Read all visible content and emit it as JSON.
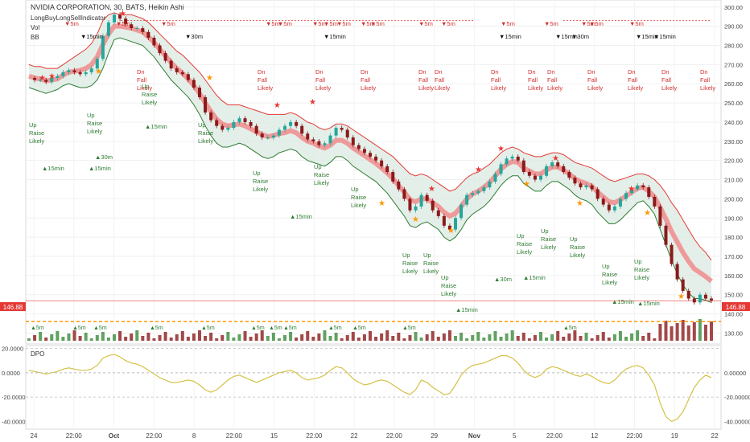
{
  "header": {
    "symbol_line": "NVIDIA CORPORATION, 30, BATS, Heikin Ashi",
    "indicators": [
      "LongBuyLongSellIndicator",
      "Vol",
      "BB"
    ]
  },
  "price_axis": {
    "ticks": [
      "300.00",
      "290.00",
      "280.00",
      "270.00",
      "260.00",
      "250.00",
      "240.00",
      "230.00",
      "220.00",
      "210.00",
      "200.00",
      "190.00",
      "180.00",
      "170.00",
      "160.00",
      "150.00",
      "140.00",
      "130.00"
    ],
    "last_price": "146.88"
  },
  "dpo": {
    "label": "DPO",
    "ticks_left": [
      "20.0000",
      "0.0000",
      "-20.0000",
      "-40.0000"
    ],
    "ticks_right": [
      "0.00000",
      "-20.00000",
      "-40.00000"
    ]
  },
  "time_axis": {
    "labels": [
      "24",
      "22:00",
      "Oct",
      "22:00",
      "8",
      "22:00",
      "15",
      "22:00",
      "22",
      "22:00",
      "29",
      "Nov",
      "5",
      "22:00",
      "12",
      "22:00",
      "19",
      "22"
    ]
  },
  "chart_data": {
    "type": "line",
    "title": "NVIDIA CORPORATION, 30, BATS, Heikin Ashi",
    "ylim": [
      126,
      302
    ],
    "dpo_ylim": [
      -45,
      21
    ],
    "price": [
      263,
      262,
      262,
      261,
      263,
      264,
      266,
      267,
      266,
      265,
      266,
      268,
      273,
      285,
      292,
      296,
      294,
      291,
      289,
      289,
      287,
      284,
      280,
      276,
      272,
      268,
      266,
      265,
      262,
      258,
      253,
      245,
      241,
      238,
      236,
      237,
      240,
      242,
      240,
      238,
      234,
      232,
      232,
      233,
      236,
      238,
      240,
      238,
      234,
      231,
      230,
      228,
      229,
      233,
      237,
      236,
      232,
      228,
      226,
      224,
      222,
      220,
      217,
      214,
      209,
      205,
      200,
      194,
      196,
      202,
      199,
      194,
      191,
      186,
      184,
      190,
      197,
      202,
      203,
      204,
      206,
      209,
      213,
      218,
      221,
      222,
      220,
      214,
      212,
      210,
      212,
      217,
      219,
      217,
      214,
      211,
      208,
      206,
      207,
      205,
      200,
      197,
      194,
      196,
      200,
      203,
      205,
      207,
      206,
      201,
      196,
      186,
      176,
      166,
      158,
      152,
      148,
      146,
      150,
      148,
      147
    ],
    "upper_band": [
      270,
      269,
      269,
      268,
      268,
      268,
      270,
      272,
      274,
      276,
      278,
      281,
      286,
      293,
      296,
      297,
      296,
      296,
      296,
      295,
      294,
      292,
      289,
      286,
      283,
      280,
      277,
      275,
      272,
      269,
      266,
      262,
      258,
      254,
      251,
      249,
      249,
      249,
      248,
      247,
      246,
      245,
      244,
      244,
      244,
      244,
      245,
      244,
      242,
      240,
      239,
      237,
      236,
      237,
      239,
      239,
      238,
      236,
      234,
      232,
      230,
      228,
      226,
      224,
      222,
      219,
      216,
      213,
      212,
      213,
      212,
      210,
      208,
      206,
      204,
      205,
      208,
      211,
      213,
      214,
      216,
      218,
      221,
      224,
      226,
      227,
      226,
      224,
      223,
      222,
      222,
      223,
      224,
      224,
      223,
      221,
      219,
      218,
      217,
      216,
      214,
      212,
      210,
      209,
      210,
      211,
      212,
      213,
      213,
      212,
      210,
      207,
      203,
      198,
      194,
      189,
      184,
      179,
      175,
      172,
      168
    ],
    "lower_band": [
      258,
      257,
      256,
      255,
      256,
      257,
      259,
      260,
      259,
      258,
      258,
      259,
      262,
      268,
      276,
      283,
      284,
      283,
      282,
      281,
      280,
      277,
      274,
      270,
      266,
      262,
      259,
      256,
      253,
      249,
      244,
      238,
      233,
      229,
      227,
      227,
      228,
      229,
      228,
      226,
      224,
      222,
      221,
      222,
      224,
      225,
      226,
      225,
      222,
      220,
      219,
      218,
      217,
      219,
      222,
      222,
      220,
      217,
      215,
      213,
      211,
      209,
      206,
      203,
      199,
      195,
      191,
      186,
      185,
      187,
      188,
      186,
      184,
      180,
      178,
      180,
      184,
      189,
      192,
      194,
      196,
      199,
      203,
      207,
      210,
      212,
      212,
      208,
      206,
      204,
      204,
      207,
      209,
      209,
      207,
      205,
      202,
      200,
      199,
      197,
      193,
      190,
      187,
      187,
      189,
      192,
      195,
      198,
      199,
      196,
      192,
      184,
      176,
      168,
      161,
      155,
      151,
      148,
      148,
      147,
      146
    ],
    "dpo": [
      2,
      1,
      0,
      -1,
      0,
      1,
      3,
      4,
      3,
      2,
      2,
      3,
      6,
      12,
      14,
      15,
      13,
      10,
      8,
      7,
      5,
      2,
      -1,
      -4,
      -6,
      -8,
      -8,
      -7,
      -6,
      -7,
      -10,
      -14,
      -16,
      -14,
      -10,
      -6,
      -3,
      -2,
      -4,
      -6,
      -8,
      -6,
      -4,
      -2,
      0,
      1,
      2,
      0,
      -4,
      -6,
      -5,
      -4,
      -2,
      2,
      5,
      4,
      0,
      -5,
      -8,
      -10,
      -9,
      -7,
      -6,
      -7,
      -10,
      -13,
      -16,
      -18,
      -14,
      -6,
      -8,
      -12,
      -15,
      -18,
      -17,
      -10,
      -2,
      3,
      6,
      7,
      8,
      10,
      12,
      14,
      14,
      12,
      8,
      2,
      -2,
      -4,
      -2,
      3,
      5,
      4,
      2,
      0,
      -2,
      -3,
      -1,
      -3,
      -6,
      -8,
      -9,
      -6,
      -1,
      3,
      5,
      6,
      4,
      -2,
      -10,
      -25,
      -36,
      -40,
      -38,
      -32,
      -22,
      -12,
      -6,
      -2,
      -4
    ]
  },
  "signals": {
    "up_text": [
      "Up",
      "Raise",
      "Likely"
    ],
    "dn_text": [
      "Dn",
      "Fall",
      "Likely"
    ],
    "markers_top": [
      "▼5m",
      "▼5m",
      "▼5m",
      "▼5m",
      "▼5m",
      "▼5m",
      "▼5m",
      "▼5m",
      "▼5m",
      "▼5m",
      "▼5m",
      "▼5m",
      "▼5m",
      "▼5m",
      "▼5m",
      "▼5m",
      "▼5m"
    ],
    "markers_mid": [
      "▼15min",
      "▼30m",
      "▼15min",
      "▼15min",
      "▼15min",
      "▼30m",
      "▼15min",
      "▼15min"
    ],
    "markers_low": [
      "▲15min",
      "▲15min",
      "▲30m",
      "▲15min",
      "▲15min",
      "▲15min",
      "▲30m",
      "▲15min",
      "▲15min",
      "▲15min"
    ],
    "bottom_row": [
      "▲5m",
      "▲5m",
      "▲5m",
      "▲5m",
      "▲5m",
      "▲5m",
      "▲5m",
      "▲5m",
      "▲5m",
      "▲5m",
      "▲5m",
      "▲5m"
    ]
  },
  "colors": {
    "bull": "#26a69a",
    "bear": "#8b1a1a",
    "upper": "#e53935",
    "lower": "#2e7d32",
    "ma_red": "#ef9a9a",
    "cloud": "#d8e8e0",
    "dpo_line": "#d4c245",
    "price_tag": "#e53935"
  }
}
